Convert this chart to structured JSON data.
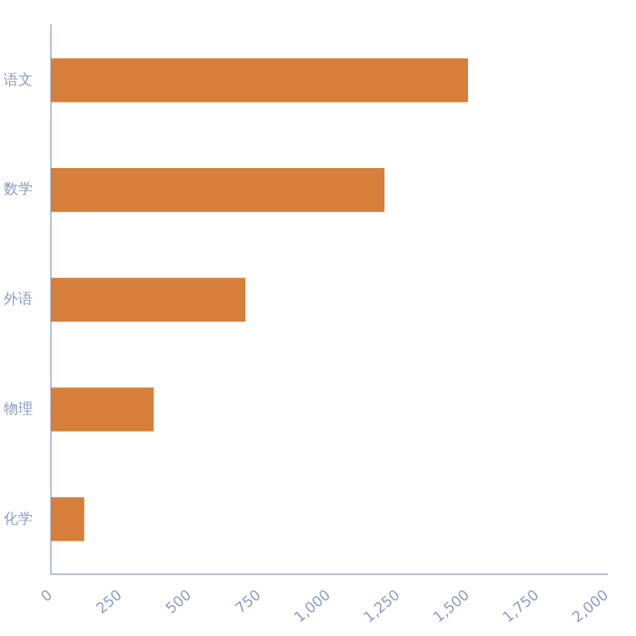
{
  "chart_data": {
    "type": "bar",
    "orientation": "horizontal",
    "categories": [
      "语文",
      "数学",
      "外语",
      "物理",
      "化学"
    ],
    "series": [
      {
        "color": "#d57f3a",
        "values": [
          1500,
          1200,
          700,
          370,
          120
        ]
      }
    ],
    "xlim": [
      0,
      2000
    ],
    "xticks": [
      0,
      250,
      500,
      750,
      {
        "value": 1000,
        "label": "1,000"
      },
      {
        "value": 1250,
        "label": "1,250"
      },
      {
        "value": 1500,
        "label": "1,500"
      },
      {
        "value": 1750,
        "label": "1,750"
      },
      {
        "value": 2000,
        "label": "2,000"
      }
    ],
    "grid": false,
    "legend": false
  }
}
